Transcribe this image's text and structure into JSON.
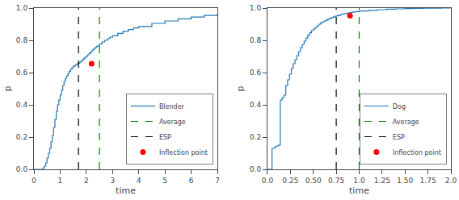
{
  "chart_data": [
    {
      "type": "step",
      "xlabel": "time",
      "ylabel": "p",
      "xlim": [
        0,
        7
      ],
      "ylim": [
        0.0,
        1.0
      ],
      "xticks": [
        0,
        1,
        2,
        3,
        4,
        5,
        6,
        7
      ],
      "yticks": [
        {
          "value": 0.0,
          "label": "0.0"
        },
        0.2,
        0.4,
        0.6,
        0.8,
        {
          "value": 1.0,
          "label": "1.0"
        }
      ],
      "grid": false,
      "legend": "lower right",
      "series": [
        {
          "name": "Blender",
          "type": "step",
          "color": "#1f77b4",
          "x": [
            0.0,
            0.3,
            0.35,
            0.4,
            0.45,
            0.5,
            0.55,
            0.6,
            0.65,
            0.7,
            0.75,
            0.8,
            0.85,
            0.9,
            0.95,
            1.0,
            1.05,
            1.1,
            1.15,
            1.2,
            1.25,
            1.3,
            1.35,
            1.4,
            1.45,
            1.5,
            1.55,
            1.6,
            1.65,
            1.7,
            1.75,
            1.8,
            1.85,
            1.9,
            1.95,
            2.0,
            2.05,
            2.1,
            2.15,
            2.2,
            2.25,
            2.3,
            2.35,
            2.4,
            2.5,
            2.6,
            2.7,
            2.8,
            2.9,
            3.0,
            3.2,
            3.4,
            3.6,
            3.8,
            4.0,
            4.5,
            5.0,
            5.5,
            6.0,
            6.5,
            7.0
          ],
          "values": [
            0.0,
            0.0,
            0.01,
            0.02,
            0.04,
            0.07,
            0.1,
            0.13,
            0.17,
            0.21,
            0.26,
            0.31,
            0.36,
            0.4,
            0.43,
            0.46,
            0.49,
            0.52,
            0.545,
            0.565,
            0.58,
            0.595,
            0.608,
            0.62,
            0.63,
            0.638,
            0.644,
            0.65,
            0.654,
            0.658,
            0.665,
            0.672,
            0.68,
            0.688,
            0.695,
            0.702,
            0.71,
            0.718,
            0.726,
            0.735,
            0.743,
            0.75,
            0.757,
            0.764,
            0.778,
            0.79,
            0.8,
            0.81,
            0.82,
            0.828,
            0.843,
            0.856,
            0.867,
            0.877,
            0.886,
            0.905,
            0.92,
            0.933,
            0.944,
            0.954,
            0.963
          ]
        },
        {
          "name": "Average",
          "type": "vline",
          "color": "green",
          "line_style": "dashed",
          "x": 2.5
        },
        {
          "name": "ESP",
          "type": "vline",
          "color": "black",
          "line_style": "dashed",
          "x": 1.7
        },
        {
          "name": "Inflection point",
          "type": "scatter",
          "color": "red",
          "marker": "circle",
          "x": [
            2.2
          ],
          "values": [
            0.655
          ]
        }
      ]
    },
    {
      "type": "step",
      "xlabel": "time",
      "ylabel": "p",
      "xlim": [
        0.0,
        2.0
      ],
      "ylim": [
        0.0,
        1.0
      ],
      "xticks": [
        {
          "value": 0.0,
          "label": "0.0"
        },
        0.25,
        {
          "value": 0.5,
          "label": "0.50"
        },
        0.75,
        {
          "value": 1.0,
          "label": "1.0"
        },
        1.25,
        {
          "value": 1.5,
          "label": "1.50"
        },
        1.75,
        {
          "value": 2.0,
          "label": "2.0"
        }
      ],
      "yticks": [
        {
          "value": 0.0,
          "label": "0.0"
        },
        0.2,
        0.4,
        0.6,
        0.8,
        {
          "value": 1.0,
          "label": "1.0"
        }
      ],
      "grid": false,
      "legend": "lower right",
      "series": [
        {
          "name": "Dog",
          "type": "step",
          "color": "#1f77b4",
          "x": [
            0.0,
            0.04,
            0.05,
            0.08,
            0.1,
            0.12,
            0.14,
            0.16,
            0.18,
            0.2,
            0.22,
            0.24,
            0.26,
            0.28,
            0.3,
            0.32,
            0.34,
            0.36,
            0.38,
            0.4,
            0.42,
            0.44,
            0.46,
            0.48,
            0.5,
            0.52,
            0.54,
            0.56,
            0.58,
            0.6,
            0.62,
            0.64,
            0.66,
            0.68,
            0.7,
            0.72,
            0.74,
            0.76,
            0.78,
            0.8,
            0.82,
            0.84,
            0.86,
            0.88,
            0.9,
            0.92,
            0.94,
            0.96,
            1.0,
            1.1,
            1.2,
            1.3,
            1.4,
            1.5,
            1.6,
            1.7,
            1.8,
            1.9,
            2.0
          ],
          "values": [
            0.0,
            0.0,
            0.13,
            0.14,
            0.145,
            0.15,
            0.43,
            0.445,
            0.46,
            0.52,
            0.555,
            0.59,
            0.625,
            0.655,
            0.68,
            0.705,
            0.73,
            0.755,
            0.775,
            0.795,
            0.815,
            0.832,
            0.847,
            0.86,
            0.87,
            0.88,
            0.89,
            0.9,
            0.908,
            0.915,
            0.92,
            0.926,
            0.932,
            0.937,
            0.942,
            0.946,
            0.95,
            0.953,
            0.956,
            0.96,
            0.963,
            0.965,
            0.968,
            0.97,
            0.972,
            0.974,
            0.976,
            0.978,
            0.982,
            0.986,
            0.99,
            0.993,
            0.995,
            0.997,
            0.998,
            0.999,
            0.9995,
            1.0,
            1.0
          ]
        },
        {
          "name": "Average",
          "type": "vline",
          "color": "green",
          "line_style": "dashed",
          "x": 1.0
        },
        {
          "name": "ESP",
          "type": "vline",
          "color": "black",
          "line_style": "dashed",
          "x": 0.75
        },
        {
          "name": "Inflection point",
          "type": "scatter",
          "color": "red",
          "marker": "circle",
          "x": [
            0.9
          ],
          "values": [
            0.952
          ]
        }
      ]
    }
  ]
}
